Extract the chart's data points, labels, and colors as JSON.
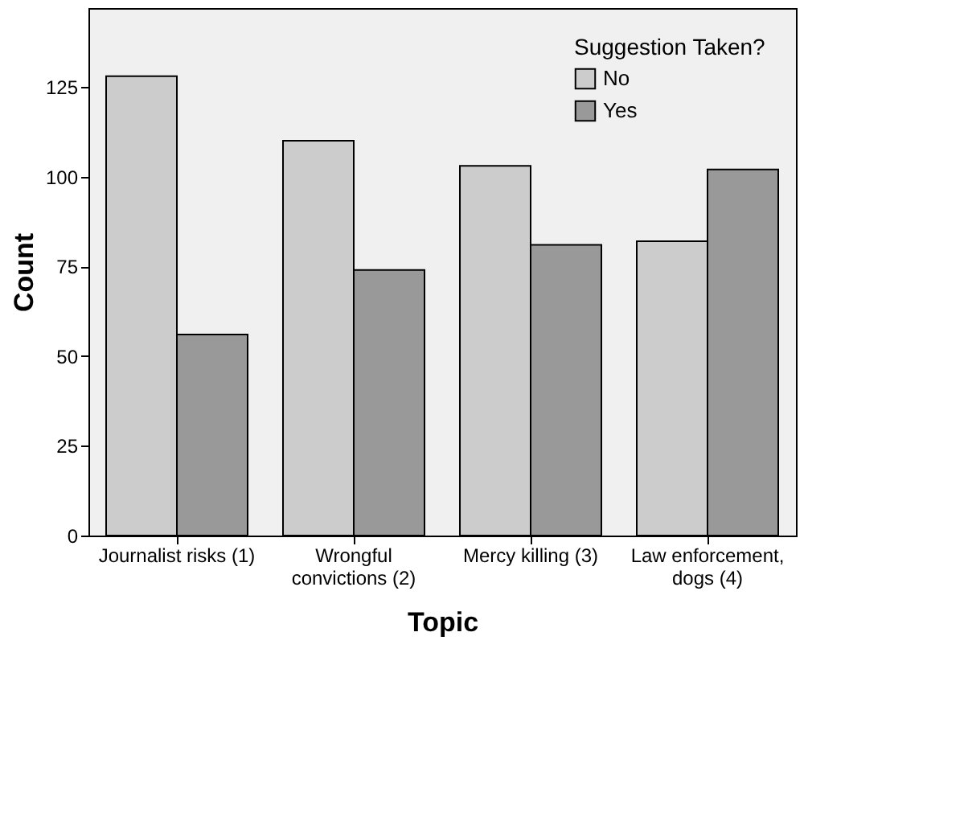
{
  "chart_data": {
    "type": "bar",
    "xlabel": "Topic",
    "ylabel": "Count",
    "legend_title": "Suggestion Taken?",
    "legend": "top right",
    "grid": false,
    "categories": [
      "Journalist risks (1)",
      "Wrongful\nconvictions  (2)",
      "Mercy killing (3)",
      "Law  enforcement,\ndogs (4)"
    ],
    "series": [
      {
        "name": "No",
        "color": "#cccccc",
        "values": [
          128,
          110,
          103,
          82
        ]
      },
      {
        "name": "Yes",
        "color": "#999999",
        "values": [
          56,
          74,
          81,
          102
        ]
      }
    ],
    "ylim": [
      0,
      147
    ],
    "yticks": [
      0,
      25,
      50,
      75,
      100,
      125
    ]
  }
}
